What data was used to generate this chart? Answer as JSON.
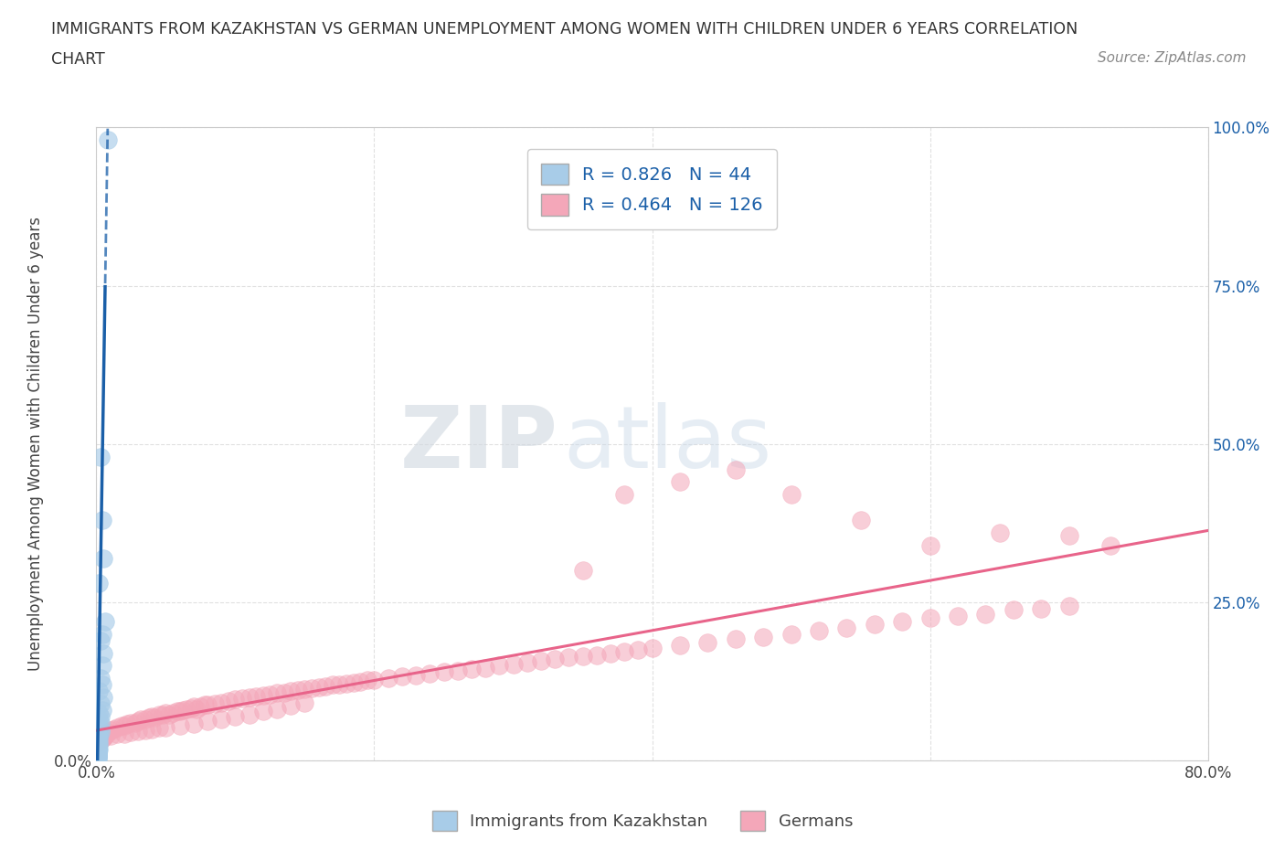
{
  "title_line1": "IMMIGRANTS FROM KAZAKHSTAN VS GERMAN UNEMPLOYMENT AMONG WOMEN WITH CHILDREN UNDER 6 YEARS CORRELATION",
  "title_line2": "CHART",
  "source": "Source: ZipAtlas.com",
  "ylabel": "Unemployment Among Women with Children Under 6 years",
  "xlim": [
    0.0,
    0.8
  ],
  "ylim": [
    0.0,
    1.0
  ],
  "blue_R": 0.826,
  "blue_N": 44,
  "pink_R": 0.464,
  "pink_N": 126,
  "blue_color": "#a8cce8",
  "pink_color": "#f4a7b9",
  "blue_line_color": "#1a5fa8",
  "pink_line_color": "#e8648a",
  "blue_scatter_x": [
    0.008,
    0.003,
    0.004,
    0.005,
    0.002,
    0.006,
    0.004,
    0.003,
    0.005,
    0.004,
    0.003,
    0.004,
    0.002,
    0.005,
    0.003,
    0.004,
    0.002,
    0.003,
    0.002,
    0.003,
    0.002,
    0.003,
    0.002,
    0.003,
    0.002,
    0.001,
    0.002,
    0.001,
    0.002,
    0.001,
    0.002,
    0.001,
    0.001,
    0.002,
    0.001,
    0.001,
    0.001,
    0.001,
    0.001,
    0.001,
    0.001,
    0.001,
    0.001,
    0.001
  ],
  "blue_scatter_y": [
    0.98,
    0.48,
    0.38,
    0.32,
    0.28,
    0.22,
    0.2,
    0.19,
    0.17,
    0.15,
    0.13,
    0.12,
    0.11,
    0.1,
    0.09,
    0.08,
    0.075,
    0.07,
    0.065,
    0.06,
    0.055,
    0.05,
    0.048,
    0.045,
    0.04,
    0.038,
    0.035,
    0.032,
    0.03,
    0.028,
    0.025,
    0.022,
    0.02,
    0.018,
    0.016,
    0.015,
    0.013,
    0.012,
    0.01,
    0.009,
    0.008,
    0.006,
    0.005,
    0.003
  ],
  "pink_scatter_x": [
    0.005,
    0.008,
    0.01,
    0.012,
    0.015,
    0.018,
    0.02,
    0.022,
    0.025,
    0.028,
    0.03,
    0.032,
    0.035,
    0.038,
    0.04,
    0.042,
    0.045,
    0.048,
    0.05,
    0.052,
    0.055,
    0.058,
    0.06,
    0.062,
    0.065,
    0.068,
    0.07,
    0.072,
    0.075,
    0.078,
    0.08,
    0.085,
    0.09,
    0.095,
    0.1,
    0.105,
    0.11,
    0.115,
    0.12,
    0.125,
    0.13,
    0.135,
    0.14,
    0.145,
    0.15,
    0.155,
    0.16,
    0.165,
    0.17,
    0.175,
    0.18,
    0.185,
    0.19,
    0.195,
    0.2,
    0.21,
    0.22,
    0.23,
    0.24,
    0.25,
    0.26,
    0.27,
    0.28,
    0.29,
    0.3,
    0.31,
    0.32,
    0.33,
    0.34,
    0.35,
    0.36,
    0.37,
    0.38,
    0.39,
    0.4,
    0.42,
    0.44,
    0.46,
    0.48,
    0.5,
    0.52,
    0.54,
    0.56,
    0.58,
    0.6,
    0.62,
    0.64,
    0.66,
    0.68,
    0.7,
    0.38,
    0.42,
    0.35,
    0.46,
    0.5,
    0.55,
    0.6,
    0.65,
    0.7,
    0.73,
    0.005,
    0.01,
    0.015,
    0.02,
    0.025,
    0.03,
    0.035,
    0.04,
    0.045,
    0.05,
    0.06,
    0.07,
    0.08,
    0.09,
    0.1,
    0.11,
    0.12,
    0.13,
    0.14,
    0.15,
    0.002,
    0.003,
    0.004,
    0.005,
    0.006,
    0.007
  ],
  "pink_scatter_y": [
    0.04,
    0.045,
    0.048,
    0.05,
    0.052,
    0.055,
    0.055,
    0.058,
    0.06,
    0.06,
    0.062,
    0.065,
    0.065,
    0.068,
    0.07,
    0.068,
    0.072,
    0.073,
    0.075,
    0.073,
    0.076,
    0.078,
    0.078,
    0.08,
    0.082,
    0.083,
    0.085,
    0.082,
    0.086,
    0.088,
    0.088,
    0.09,
    0.092,
    0.095,
    0.097,
    0.098,
    0.1,
    0.102,
    0.103,
    0.105,
    0.107,
    0.108,
    0.11,
    0.112,
    0.113,
    0.115,
    0.116,
    0.118,
    0.12,
    0.12,
    0.122,
    0.123,
    0.125,
    0.127,
    0.128,
    0.13,
    0.133,
    0.135,
    0.137,
    0.14,
    0.142,
    0.145,
    0.147,
    0.15,
    0.152,
    0.155,
    0.158,
    0.16,
    0.163,
    0.165,
    0.167,
    0.17,
    0.172,
    0.175,
    0.178,
    0.182,
    0.187,
    0.192,
    0.196,
    0.2,
    0.205,
    0.21,
    0.215,
    0.22,
    0.225,
    0.228,
    0.232,
    0.238,
    0.24,
    0.245,
    0.42,
    0.44,
    0.3,
    0.46,
    0.42,
    0.38,
    0.34,
    0.36,
    0.355,
    0.34,
    0.038,
    0.04,
    0.042,
    0.043,
    0.045,
    0.047,
    0.048,
    0.05,
    0.052,
    0.053,
    0.055,
    0.058,
    0.062,
    0.065,
    0.07,
    0.073,
    0.078,
    0.082,
    0.087,
    0.092,
    0.03,
    0.032,
    0.035,
    0.037,
    0.04,
    0.042
  ],
  "watermark_zip": "ZIP",
  "watermark_atlas": "atlas",
  "background_color": "#ffffff",
  "grid_color": "#dddddd"
}
